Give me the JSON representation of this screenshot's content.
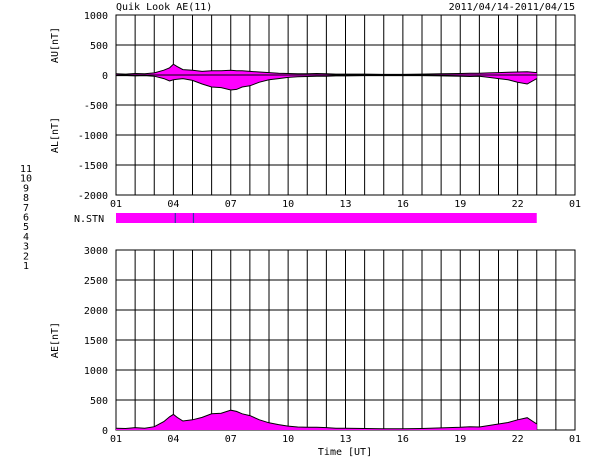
{
  "header": {
    "title": "Quik Look AE(11)",
    "date_range": "2011/04/14-2011/04/15"
  },
  "station_legend": [
    {
      "label": "11",
      "color": "#00dddd"
    },
    {
      "label": "10",
      "color": "#ff00ff"
    },
    {
      "label": "9",
      "color": "#3333cc"
    },
    {
      "label": "8",
      "color": "#dddd00"
    },
    {
      "label": "7",
      "color": "#cccc00"
    },
    {
      "label": "6",
      "color": "#ff0000"
    },
    {
      "label": "5",
      "color": "#aaaaaa"
    },
    {
      "label": "4",
      "color": "#aaaaaa"
    },
    {
      "label": "3",
      "color": "#22aaaa"
    },
    {
      "label": "2",
      "color": "#cc0000"
    },
    {
      "label": "1",
      "color": "#0000cc"
    }
  ],
  "chart_data": [
    {
      "type": "area",
      "name": "AU/AL panel",
      "ylabel_upper": "AU[nT]",
      "ylabel_lower": "AL[nT]",
      "ylim": [
        -2000,
        1000
      ],
      "yticks": [
        1000,
        500,
        0,
        -500,
        -1000,
        -1500,
        -2000
      ],
      "xlim": [
        1,
        25
      ],
      "xtick_labels": [
        "01",
        "04",
        "07",
        "10",
        "13",
        "16",
        "19",
        "22",
        "01"
      ],
      "fill_color": "#ff00ff",
      "x": [
        1,
        1.5,
        2,
        2.5,
        3,
        3.5,
        3.8,
        4,
        4.2,
        4.5,
        5,
        5.5,
        6,
        6.5,
        7,
        7.3,
        7.6,
        8,
        8.5,
        9,
        9.5,
        10,
        10.5,
        11,
        11.5,
        12,
        12.5,
        13,
        14,
        15,
        16,
        17,
        18,
        19,
        19.5,
        20,
        20.5,
        21,
        21.5,
        22,
        22.5,
        23
      ],
      "au": [
        20,
        15,
        25,
        20,
        35,
        80,
        120,
        180,
        140,
        90,
        80,
        60,
        70,
        70,
        80,
        70,
        70,
        60,
        50,
        40,
        30,
        25,
        20,
        20,
        25,
        20,
        15,
        15,
        15,
        10,
        10,
        15,
        20,
        25,
        30,
        30,
        35,
        40,
        45,
        50,
        55,
        40
      ],
      "al": [
        -10,
        -10,
        -15,
        -10,
        -20,
        -60,
        -100,
        -80,
        -70,
        -60,
        -90,
        -150,
        -200,
        -210,
        -250,
        -240,
        -200,
        -180,
        -120,
        -80,
        -60,
        -40,
        -30,
        -25,
        -20,
        -20,
        -15,
        -15,
        -10,
        -10,
        -10,
        -10,
        -15,
        -20,
        -25,
        -20,
        -40,
        -60,
        -80,
        -120,
        -150,
        -60
      ]
    },
    {
      "type": "bar",
      "name": "station count",
      "label": "N.STN",
      "xlim": [
        1,
        25
      ],
      "x_start": 1,
      "x_end": 23,
      "color": "#ff00ff",
      "dip_positions": [
        4.1,
        5.05
      ]
    },
    {
      "type": "area",
      "name": "AE panel",
      "ylabel": "AE[nT]",
      "xlabel": "Time [UT]",
      "ylim": [
        0,
        3000
      ],
      "yticks": [
        3000,
        2500,
        2000,
        1500,
        1000,
        500,
        0
      ],
      "xlim": [
        1,
        25
      ],
      "xtick_labels": [
        "01",
        "04",
        "07",
        "10",
        "13",
        "16",
        "19",
        "22",
        "01"
      ],
      "fill_color": "#ff00ff",
      "x": [
        1,
        1.5,
        2,
        2.5,
        3,
        3.5,
        3.8,
        4,
        4.2,
        4.5,
        5,
        5.5,
        6,
        6.5,
        7,
        7.3,
        7.6,
        8,
        8.5,
        9,
        9.5,
        10,
        10.5,
        11,
        11.5,
        12,
        12.5,
        13,
        14,
        15,
        16,
        17,
        18,
        19,
        19.5,
        20,
        20.5,
        21,
        21.5,
        22,
        22.5,
        23
      ],
      "ae": [
        30,
        25,
        40,
        30,
        55,
        140,
        220,
        260,
        210,
        150,
        170,
        210,
        270,
        280,
        330,
        310,
        270,
        240,
        170,
        120,
        90,
        65,
        50,
        45,
        45,
        40,
        30,
        30,
        25,
        20,
        20,
        25,
        35,
        45,
        55,
        50,
        75,
        100,
        125,
        170,
        205,
        100
      ]
    }
  ]
}
